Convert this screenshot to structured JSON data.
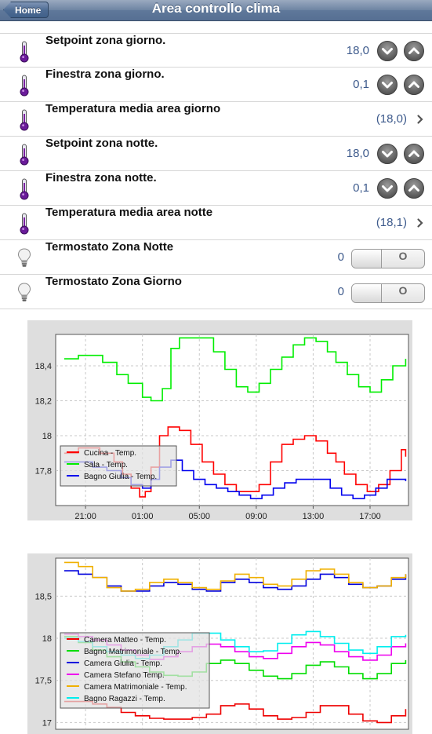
{
  "header": {
    "home_label": "Home",
    "title": "Area controllo clima"
  },
  "rows": [
    {
      "icon": "thermometer-icon",
      "label": "Setpoint zona giorno.",
      "value": "18,0",
      "control": "stepper"
    },
    {
      "icon": "thermometer-icon",
      "label": "Finestra zona giorno.",
      "value": "0,1",
      "control": "stepper"
    },
    {
      "icon": "thermometer-icon",
      "label": "Temperatura media area giorno",
      "value": "(18,0)",
      "control": "chevron"
    },
    {
      "icon": "thermometer-icon",
      "label": "Setpoint zona notte.",
      "value": "18,0",
      "control": "stepper"
    },
    {
      "icon": "thermometer-icon",
      "label": "Finestra zona notte.",
      "value": "0,1",
      "control": "stepper"
    },
    {
      "icon": "thermometer-icon",
      "label": "Temperatura media area notte",
      "value": "(18,1)",
      "control": "chevron"
    },
    {
      "icon": "lightbulb-icon",
      "label": "Termostato Zona Notte",
      "value": "0",
      "control": "toggle",
      "toggle_text": "O"
    },
    {
      "icon": "lightbulb-icon",
      "label": "Termostato Zona Giorno",
      "value": "0",
      "control": "toggle",
      "toggle_text": "O"
    }
  ],
  "chart_data": [
    {
      "type": "line",
      "title": "",
      "xlabel": "",
      "ylabel": "",
      "x_ticks": [
        "21:00",
        "01:00",
        "05:00",
        "09:00",
        "13:00",
        "17:00"
      ],
      "x_tick_hours": [
        21,
        25,
        29,
        33,
        37,
        41
      ],
      "x_range_hours": [
        18.9,
        43.7
      ],
      "y_ticks": [
        "18,4",
        "18,2",
        "18",
        "17,8"
      ],
      "y_tick_values": [
        18.4,
        18.2,
        18.0,
        17.8
      ],
      "ylim": [
        17.6,
        18.58
      ],
      "grid": true,
      "legend": "bottom-left",
      "series": [
        {
          "name": "Cucina - Temp.",
          "color": "#ff0000",
          "x": [
            19.5,
            20.5,
            21.2,
            22,
            23,
            23.6,
            24.2,
            24.8,
            25.2,
            25.6,
            26.2,
            26.8,
            27.6,
            28.4,
            29.2,
            30,
            30.8,
            31.6,
            32.4,
            33.2,
            34,
            34.8,
            35.6,
            36.4,
            37.2,
            38,
            38.6,
            39.2,
            40,
            40.8,
            41.6,
            42.4,
            43.2,
            43.5
          ],
          "y": [
            17.9,
            17.93,
            17.93,
            17.9,
            17.85,
            17.78,
            17.7,
            17.65,
            17.68,
            17.82,
            18.0,
            18.05,
            18.03,
            17.95,
            17.85,
            17.78,
            17.72,
            17.68,
            17.68,
            17.72,
            17.85,
            17.95,
            17.98,
            18.0,
            17.97,
            17.9,
            17.85,
            17.78,
            17.72,
            17.68,
            17.72,
            17.8,
            17.92,
            17.88
          ]
        },
        {
          "name": "Sala - Temp.",
          "color": "#00ee00",
          "x": [
            19.5,
            20.5,
            21.2,
            22.2,
            23.2,
            24,
            25,
            25.6,
            26.4,
            27,
            27.6,
            28.4,
            29.2,
            30,
            30.8,
            31.6,
            32.4,
            33.2,
            34,
            34.8,
            35.6,
            36.4,
            37.2,
            38,
            38.6,
            39.4,
            40.2,
            41,
            41.8,
            42.6,
            43.5
          ],
          "y": [
            18.44,
            18.46,
            18.46,
            18.42,
            18.35,
            18.3,
            18.22,
            18.2,
            18.27,
            18.5,
            18.56,
            18.56,
            18.56,
            18.48,
            18.38,
            18.28,
            18.25,
            18.3,
            18.38,
            18.45,
            18.52,
            18.56,
            18.54,
            18.48,
            18.42,
            18.35,
            18.28,
            18.25,
            18.32,
            18.4,
            18.44
          ]
        },
        {
          "name": "Bagno Giulia - Temp.",
          "color": "#0000ee",
          "x": [
            19.5,
            20.5,
            21.5,
            22.5,
            23.5,
            24.2,
            25,
            25.6,
            26.2,
            27,
            27.8,
            28.6,
            29.4,
            30.2,
            31,
            31.8,
            32.6,
            33.4,
            34.2,
            35,
            35.8,
            36.6,
            37.4,
            38.2,
            39,
            39.8,
            40.6,
            41.4,
            42.2,
            43,
            43.5
          ],
          "y": [
            17.85,
            17.85,
            17.82,
            17.8,
            17.76,
            17.72,
            17.7,
            17.75,
            17.82,
            17.86,
            17.8,
            17.75,
            17.72,
            17.7,
            17.68,
            17.66,
            17.64,
            17.66,
            17.7,
            17.73,
            17.75,
            17.75,
            17.75,
            17.7,
            17.66,
            17.64,
            17.66,
            17.7,
            17.75,
            17.75,
            17.74
          ]
        }
      ]
    },
    {
      "type": "line",
      "title": "",
      "xlabel": "",
      "ylabel": "",
      "y_ticks": [
        "18,5",
        "18",
        "17,5",
        "17"
      ],
      "y_tick_values": [
        18.5,
        18.0,
        17.5,
        17.0
      ],
      "x_range_hours": [
        18.9,
        43.7
      ],
      "ylim": [
        16.92,
        18.95
      ],
      "grid": true,
      "legend": "bottom-left",
      "series": [
        {
          "name": "Camera Matteo - Temp.",
          "color": "#ee0000",
          "x": [
            19.5,
            20.5,
            21.5,
            22.5,
            23.5,
            24.5,
            25.5,
            26.5,
            27.5,
            28.5,
            29.5,
            30.5,
            31.5,
            32.5,
            33.5,
            34.5,
            35.5,
            36.5,
            37.5,
            38.5,
            39.5,
            40.5,
            41.5,
            42.5,
            43.5
          ],
          "y": [
            17.25,
            17.25,
            17.22,
            17.18,
            17.12,
            17.08,
            17.05,
            17.04,
            17.04,
            17.06,
            17.1,
            17.2,
            17.22,
            17.16,
            17.08,
            17.04,
            17.06,
            17.12,
            17.2,
            17.2,
            17.1,
            17.02,
            17.0,
            17.08,
            17.16
          ]
        },
        {
          "name": "Bagno Matrimoniale - Temp.",
          "color": "#00dd00",
          "x": [
            19.5,
            20.5,
            21.5,
            22.5,
            23.5,
            24.5,
            25.5,
            26.5,
            27.5,
            28.5,
            29.5,
            30.5,
            31.5,
            32.5,
            33.5,
            34.5,
            35.5,
            36.5,
            37.5,
            38.5,
            39.5,
            40.5,
            41.5,
            42.5,
            43.5
          ],
          "y": [
            18.02,
            17.95,
            17.86,
            17.78,
            17.72,
            17.66,
            17.6,
            17.56,
            17.55,
            17.6,
            17.7,
            17.74,
            17.7,
            17.62,
            17.55,
            17.52,
            17.58,
            17.68,
            17.72,
            17.66,
            17.58,
            17.52,
            17.58,
            17.7,
            17.74
          ]
        },
        {
          "name": "Camera Giulia - Temp.",
          "color": "#0000dd",
          "x": [
            19.5,
            20.5,
            21.5,
            22.5,
            23.5,
            24.5,
            25.5,
            26.5,
            27.5,
            28.5,
            29.5,
            30.5,
            31.5,
            32.5,
            33.5,
            34.5,
            35.5,
            36.5,
            37.5,
            38.5,
            39.5,
            40.5,
            41.5,
            42.5,
            43.5
          ],
          "y": [
            18.8,
            18.76,
            18.72,
            18.62,
            18.56,
            18.56,
            18.62,
            18.66,
            18.64,
            18.58,
            18.56,
            18.66,
            18.7,
            18.66,
            18.6,
            18.58,
            18.62,
            18.7,
            18.76,
            18.72,
            18.64,
            18.6,
            18.62,
            18.7,
            18.76
          ]
        },
        {
          "name": "Camera Stefano Temp.",
          "color": "#ee00ee",
          "x": [
            19.5,
            20.5,
            21.5,
            22.5,
            23.5,
            24.5,
            25.5,
            26.5,
            27.5,
            28.5,
            29.5,
            30.5,
            31.5,
            32.5,
            33.5,
            34.5,
            35.5,
            36.5,
            37.5,
            38.5,
            39.5,
            40.5,
            41.5,
            42.5,
            43.5
          ],
          "y": [
            18.05,
            18.02,
            17.98,
            17.92,
            17.86,
            17.8,
            17.75,
            17.78,
            17.84,
            17.9,
            17.93,
            17.9,
            17.84,
            17.78,
            17.76,
            17.82,
            17.9,
            17.95,
            17.92,
            17.84,
            17.78,
            17.74,
            17.8,
            17.9,
            17.94
          ]
        },
        {
          "name": "Camera Matrimoniale - Temp.",
          "color": "#f0b000",
          "x": [
            19.5,
            20.5,
            21.5,
            22.5,
            23.5,
            24.5,
            25.5,
            26.5,
            27.5,
            28.5,
            29.5,
            30.5,
            31.5,
            32.5,
            33.5,
            34.5,
            35.5,
            36.5,
            37.5,
            38.5,
            39.5,
            40.5,
            41.5,
            42.5,
            43.5
          ],
          "y": [
            18.9,
            18.85,
            18.72,
            18.6,
            18.56,
            18.58,
            18.66,
            18.7,
            18.66,
            18.6,
            18.58,
            18.68,
            18.76,
            18.72,
            18.64,
            18.62,
            18.7,
            18.8,
            18.82,
            18.76,
            18.66,
            18.6,
            18.62,
            18.72,
            18.76
          ]
        },
        {
          "name": "Bagno Ragazzi - Temp.",
          "color": "#00eeee",
          "x": [
            19.5,
            20.5,
            21.5,
            22.5,
            23.5,
            24.5,
            25.5,
            26.5,
            27.5,
            28.5,
            29.5,
            30.5,
            31.5,
            32.5,
            33.5,
            34.5,
            35.5,
            36.5,
            37.5,
            38.5,
            39.5,
            40.5,
            41.5,
            42.5,
            43.5
          ],
          "y": [
            18.0,
            17.96,
            17.9,
            17.84,
            17.8,
            17.76,
            17.8,
            17.9,
            17.98,
            18.06,
            18.06,
            17.98,
            17.9,
            17.84,
            17.85,
            17.94,
            18.04,
            18.08,
            18.02,
            17.94,
            17.86,
            17.82,
            17.9,
            18.02,
            18.04
          ]
        }
      ]
    }
  ]
}
